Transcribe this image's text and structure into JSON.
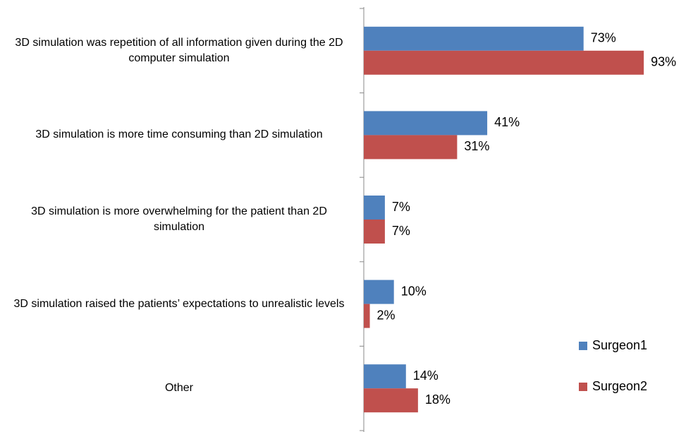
{
  "chart_data": {
    "type": "bar",
    "orientation": "horizontal",
    "categories": [
      "3D simulation was repetition of all information given during the 2D computer simulation",
      "3D simulation is more time consuming than 2D simulation",
      "3D simulation is more overwhelming for the patient than 2D simulation",
      "3D simulation raised the patients’ expectations to unrealistic levels",
      "Other"
    ],
    "series": [
      {
        "name": "Surgeon1",
        "color": "#4f81bd",
        "values": [
          73,
          41,
          7,
          10,
          14
        ],
        "value_labels": [
          "73%",
          "41%",
          "7%",
          "10%",
          "14%"
        ]
      },
      {
        "name": "Surgeon2",
        "color": "#c0504d",
        "values": [
          93,
          31,
          7,
          2,
          18
        ],
        "value_labels": [
          "93%",
          "31%",
          "7%",
          "2%",
          "18%"
        ]
      }
    ],
    "legend": "right"
  }
}
